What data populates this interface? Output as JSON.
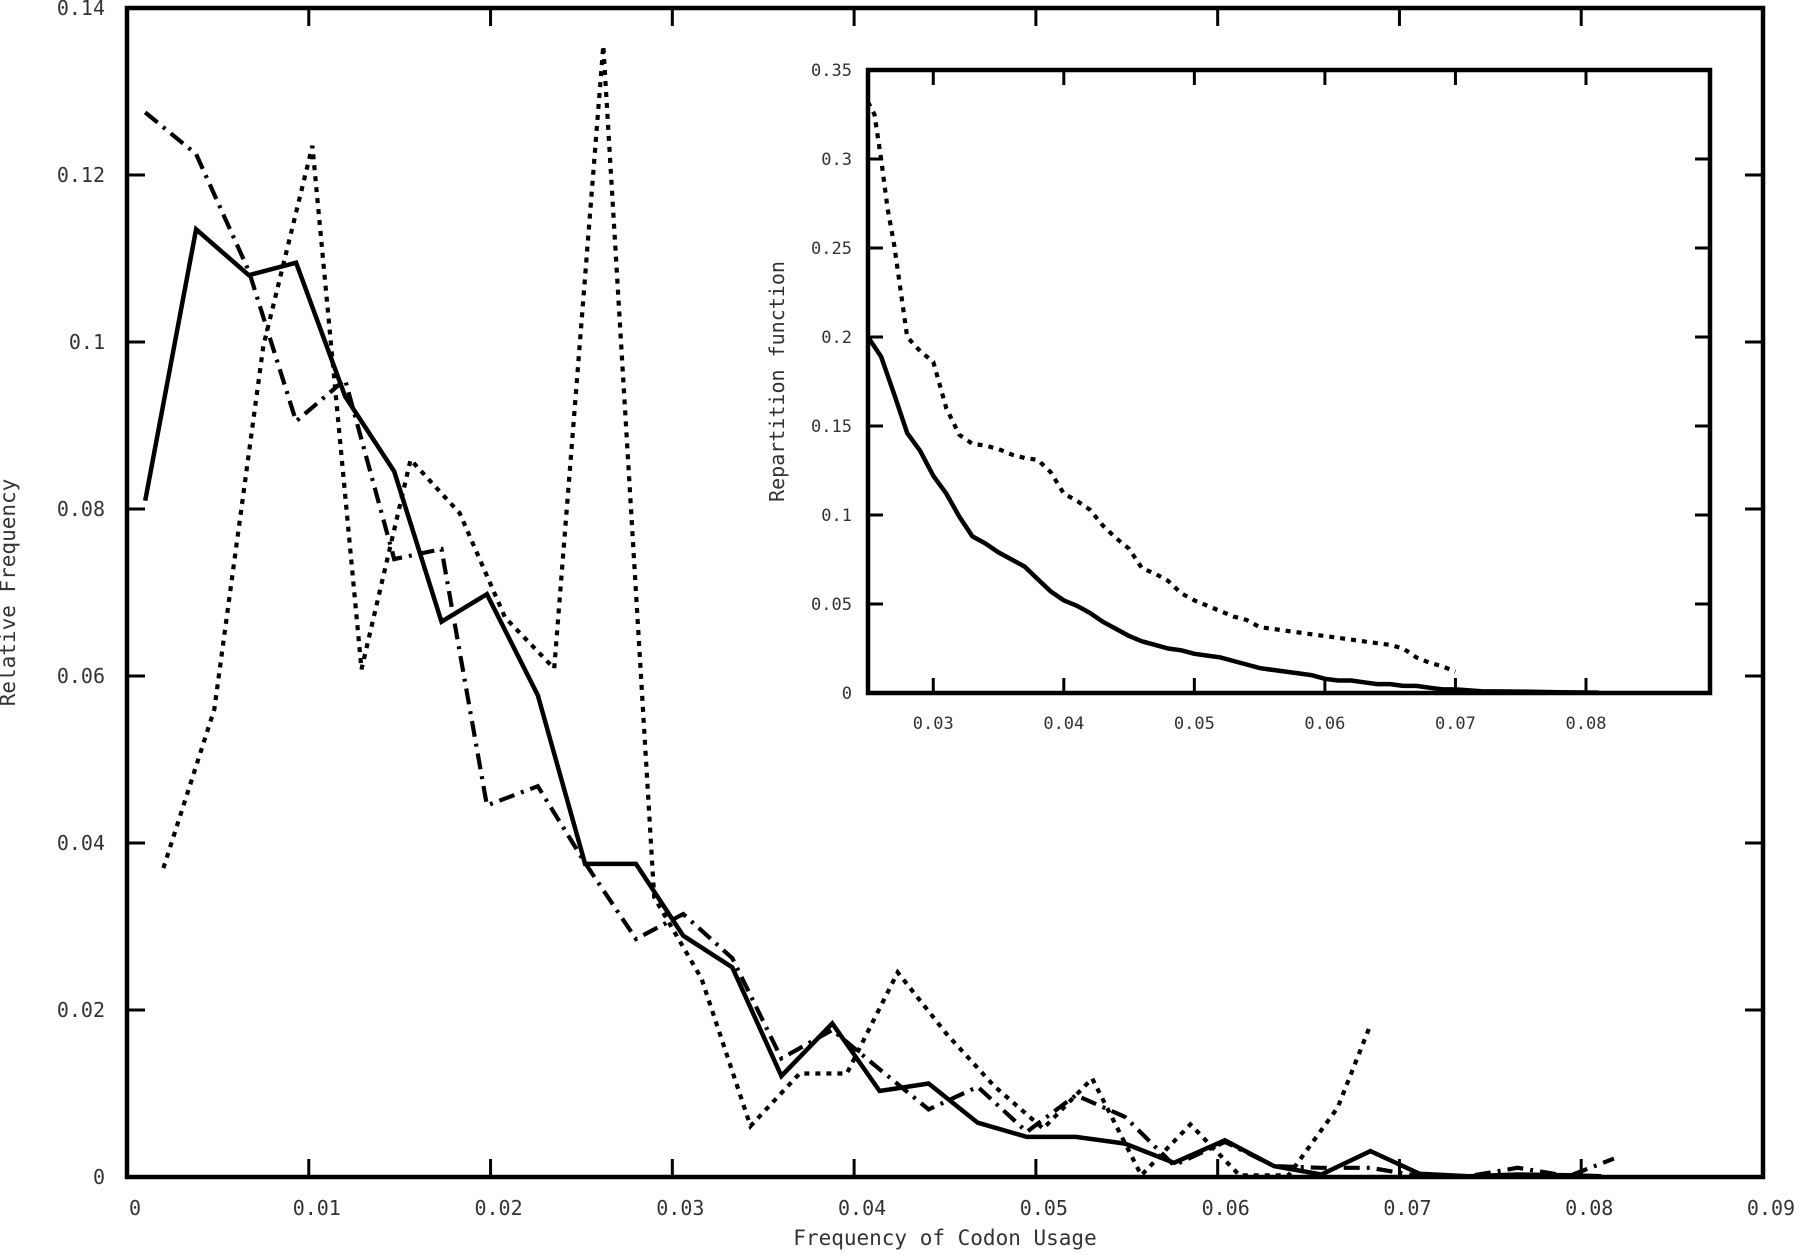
{
  "chart_data": [
    {
      "type": "line",
      "xlabel": "Frequency of Codon Usage",
      "ylabel": "Relative Frequency",
      "xlim": [
        0,
        0.09
      ],
      "ylim": [
        0,
        0.14
      ],
      "x_ticks": [
        "0",
        "0.01",
        "0.02",
        "0.03",
        "0.04",
        "0.05",
        "0.06",
        "0.07",
        "0.08",
        "0.09"
      ],
      "y_ticks": [
        "0",
        "0.02",
        "0.04",
        "0.06",
        "0.08",
        "0.1",
        "0.12",
        "0.14"
      ],
      "grid": false,
      "series": [
        {
          "style": "solid",
          "x": [
            0.001,
            0.0038,
            0.0067,
            0.0093,
            0.012,
            0.0147,
            0.0173,
            0.0198,
            0.0226,
            0.0252,
            0.028,
            0.0306,
            0.0333,
            0.036,
            0.0388,
            0.0414,
            0.0441,
            0.0468,
            0.0495,
            0.0522,
            0.0549,
            0.0576,
            0.0604,
            0.0631,
            0.0657,
            0.0684,
            0.0711,
            0.0738,
            0.0765,
            0.0793,
            0.0811
          ],
          "y": [
            0.081,
            0.1135,
            0.108,
            0.1095,
            0.0935,
            0.0845,
            0.0665,
            0.0698,
            0.0577,
            0.0375,
            0.0375,
            0.0289,
            0.0251,
            0.0121,
            0.0184,
            0.0103,
            0.0112,
            0.0065,
            0.0048,
            0.0048,
            0.004,
            0.0017,
            0.0044,
            0.0013,
            0.0003,
            0.0031,
            0.0004,
            0.0001,
            0.0003,
            0.0002,
            0.0001
          ]
        },
        {
          "style": "dash-dot",
          "x": [
            0.001,
            0.0038,
            0.0067,
            0.0093,
            0.012,
            0.0147,
            0.0173,
            0.0198,
            0.0226,
            0.0252,
            0.028,
            0.0306,
            0.0333,
            0.036,
            0.0388,
            0.0414,
            0.0441,
            0.0468,
            0.0495,
            0.0522,
            0.0549,
            0.0576,
            0.0604,
            0.0631,
            0.0657,
            0.0684,
            0.0711,
            0.0738,
            0.0765,
            0.0793,
            0.0818
          ],
          "y": [
            0.1275,
            0.1225,
            0.1085,
            0.0905,
            0.0955,
            0.074,
            0.0752,
            0.0445,
            0.0468,
            0.0376,
            0.0285,
            0.0315,
            0.0262,
            0.0142,
            0.0176,
            0.0129,
            0.0081,
            0.0108,
            0.0054,
            0.0098,
            0.0072,
            0.0014,
            0.0042,
            0.0013,
            0.0011,
            0.0011,
            0.0001,
            0.0001,
            0.0011,
            0.0001,
            0.0022
          ]
        },
        {
          "style": "dotted",
          "x": [
            0.002,
            0.0048,
            0.0075,
            0.0102,
            0.0129,
            0.0156,
            0.0183,
            0.0208,
            0.0235,
            0.0262,
            0.029,
            0.0316,
            0.0343,
            0.037,
            0.0396,
            0.0424,
            0.0451,
            0.0477,
            0.0504,
            0.0531,
            0.0558,
            0.0585,
            0.0612,
            0.0639,
            0.0666,
            0.0684
          ],
          "y": [
            0.037,
            0.056,
            0.0995,
            0.1235,
            0.0608,
            0.0859,
            0.0795,
            0.067,
            0.0609,
            0.1355,
            0.0335,
            0.0238,
            0.0061,
            0.0124,
            0.0124,
            0.0245,
            0.0171,
            0.0109,
            0.0058,
            0.0118,
            0.0002,
            0.0063,
            0.0002,
            0.0002,
            0.0083,
            0.0182
          ]
        }
      ]
    },
    {
      "type": "line",
      "xlabel": "",
      "ylabel": "Repartition function",
      "xlim": [
        0.025,
        0.0895
      ],
      "ylim": [
        0,
        0.35
      ],
      "x_ticks": [
        "0.03",
        "0.04",
        "0.05",
        "0.06",
        "0.07",
        "0.08"
      ],
      "y_ticks": [
        "0",
        "0.05",
        "0.1",
        "0.15",
        "0.2",
        "0.25",
        "0.3",
        "0.35"
      ],
      "grid": false,
      "series": [
        {
          "style": "solid",
          "x": [
            0.025,
            0.026,
            0.027,
            0.028,
            0.029,
            0.03,
            0.031,
            0.032,
            0.033,
            0.034,
            0.035,
            0.036,
            0.037,
            0.038,
            0.039,
            0.04,
            0.041,
            0.042,
            0.043,
            0.044,
            0.045,
            0.046,
            0.047,
            0.048,
            0.049,
            0.05,
            0.051,
            0.052,
            0.053,
            0.054,
            0.055,
            0.056,
            0.057,
            0.058,
            0.059,
            0.06,
            0.061,
            0.062,
            0.063,
            0.064,
            0.065,
            0.066,
            0.067,
            0.068,
            0.069,
            0.07,
            0.072,
            0.075,
            0.078,
            0.081
          ],
          "y": [
            0.2,
            0.189,
            0.168,
            0.146,
            0.136,
            0.122,
            0.112,
            0.099,
            0.088,
            0.084,
            0.079,
            0.075,
            0.071,
            0.064,
            0.057,
            0.052,
            0.049,
            0.045,
            0.04,
            0.036,
            0.032,
            0.029,
            0.027,
            0.025,
            0.024,
            0.022,
            0.021,
            0.02,
            0.018,
            0.016,
            0.014,
            0.013,
            0.012,
            0.011,
            0.01,
            0.008,
            0.007,
            0.007,
            0.006,
            0.005,
            0.005,
            0.004,
            0.004,
            0.003,
            0.002,
            0.002,
            0.001,
            0.0008,
            0.0004,
            0.0002
          ]
        },
        {
          "style": "dotted",
          "x": [
            0.025,
            0.0255,
            0.026,
            0.0265,
            0.027,
            0.028,
            0.029,
            0.03,
            0.031,
            0.032,
            0.033,
            0.034,
            0.035,
            0.036,
            0.037,
            0.038,
            0.039,
            0.04,
            0.041,
            0.042,
            0.043,
            0.044,
            0.045,
            0.046,
            0.047,
            0.048,
            0.049,
            0.05,
            0.051,
            0.052,
            0.053,
            0.054,
            0.055,
            0.056,
            0.057,
            0.058,
            0.059,
            0.06,
            0.061,
            0.062,
            0.063,
            0.064,
            0.065,
            0.066,
            0.067,
            0.068,
            0.069,
            0.07
          ],
          "y": [
            0.332,
            0.325,
            0.3,
            0.272,
            0.252,
            0.2,
            0.192,
            0.186,
            0.16,
            0.145,
            0.14,
            0.139,
            0.137,
            0.134,
            0.132,
            0.131,
            0.124,
            0.112,
            0.108,
            0.103,
            0.094,
            0.087,
            0.081,
            0.07,
            0.067,
            0.063,
            0.056,
            0.052,
            0.049,
            0.046,
            0.043,
            0.041,
            0.037,
            0.036,
            0.035,
            0.034,
            0.033,
            0.032,
            0.031,
            0.03,
            0.029,
            0.028,
            0.027,
            0.025,
            0.02,
            0.017,
            0.015,
            0.012
          ]
        }
      ]
    }
  ]
}
